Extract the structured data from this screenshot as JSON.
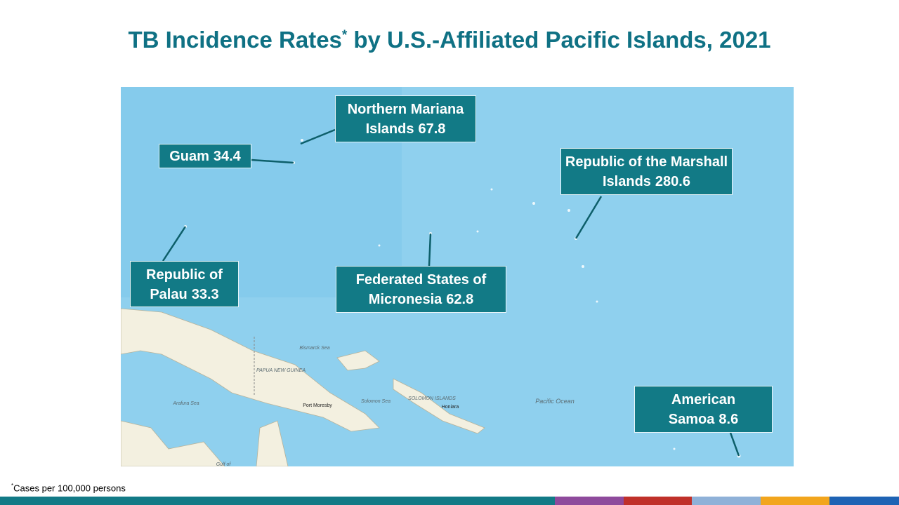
{
  "title": {
    "main": "TB Incidence Rates",
    "marker": "*",
    "rest": "by U.S.-Affiliated Pacific Islands, 2021"
  },
  "callouts": [
    {
      "name": "Northern Mariana Islands",
      "rate": 67.8
    },
    {
      "name": "Guam",
      "rate": 34.4
    },
    {
      "name": "Republic of the Marshall Islands",
      "rate": 280.6
    },
    {
      "name": "Republic of Palau",
      "rate": 33.3
    },
    {
      "name": "Federated States of Micronesia",
      "rate": 62.8
    },
    {
      "name": "American Samoa",
      "rate": 8.6
    }
  ],
  "map_labels": [
    "Bismarck Sea",
    "PAPUA NEW GUINEA",
    "Arafura Sea",
    "Port Moresby",
    "Solomon Sea",
    "SOLOMON ISLANDS",
    "Honiara",
    "Pacific Ocean",
    "Gulf of"
  ],
  "footnote": {
    "marker": "*",
    "text": "Cases per 100,000 persons"
  }
}
